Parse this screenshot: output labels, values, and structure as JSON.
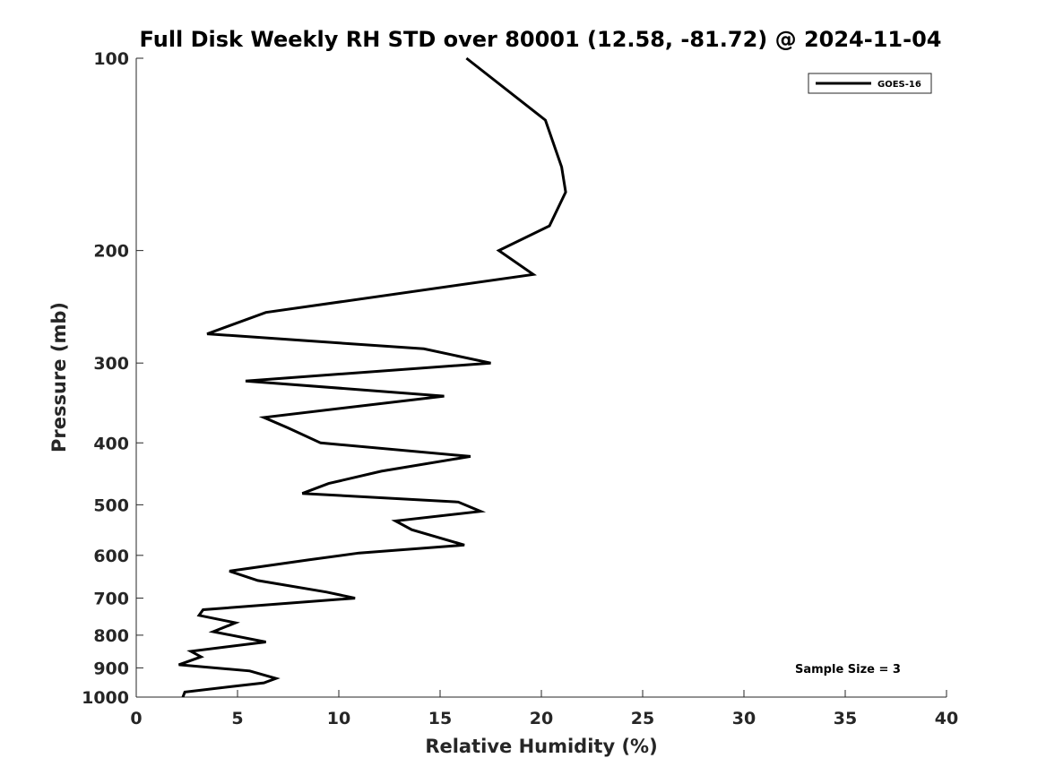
{
  "chart_data": {
    "type": "line",
    "title": "Full Disk Weekly RH STD over 80001 (12.58, -81.72) @ 2024-11-04",
    "xlabel": "Relative Humidity (%)",
    "ylabel": "Pressure (mb)",
    "xlim": [
      0,
      40
    ],
    "ylim": [
      100,
      1000
    ],
    "yscale": "log",
    "x_ticks": [
      0,
      5,
      10,
      15,
      20,
      25,
      30,
      35,
      40
    ],
    "y_ticks": [
      100,
      200,
      300,
      400,
      500,
      600,
      700,
      800,
      900,
      1000
    ],
    "grid": false,
    "legend": {
      "location": "top-right",
      "entries": [
        "GOES-16"
      ]
    },
    "annotation": "Sample Size = 3",
    "series": [
      {
        "name": "GOES-16",
        "color": "#000000",
        "x": [
          16.3,
          20.2,
          21.0,
          21.2,
          20.4,
          17.9,
          19.6,
          6.4,
          3.5,
          14.2,
          17.5,
          5.4,
          15.2,
          6.3,
          7.5,
          9.1,
          16.5,
          12.1,
          9.5,
          8.2,
          15.9,
          17.0,
          12.8,
          13.6,
          16.2,
          11.0,
          8.5,
          4.6,
          6.0,
          9.4,
          10.8,
          3.3,
          3.1,
          4.9,
          3.8,
          6.4,
          2.7,
          3.2,
          2.1,
          5.6,
          6.9,
          6.3,
          4.7,
          2.4,
          2.3
        ],
        "y": [
          100,
          125,
          148,
          162,
          183,
          200,
          218,
          250,
          270,
          285,
          300,
          320,
          338,
          365,
          379,
          400,
          420,
          443,
          463,
          480,
          495,
          512,
          530,
          547,
          578,
          595,
          610,
          635,
          657,
          685,
          700,
          730,
          745,
          765,
          790,
          820,
          848,
          865,
          890,
          910,
          935,
          950,
          963,
          982,
          1000
        ]
      }
    ]
  }
}
